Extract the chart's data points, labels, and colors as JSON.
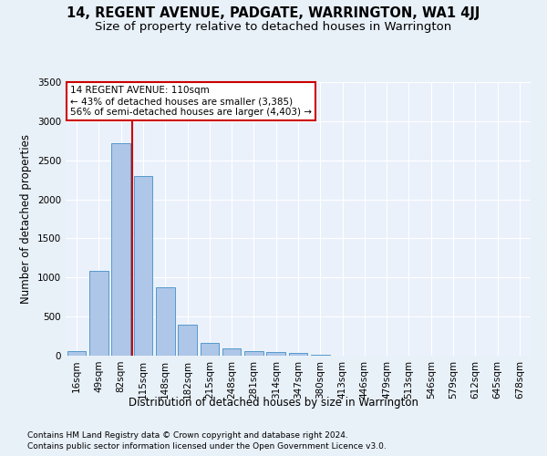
{
  "title": "14, REGENT AVENUE, PADGATE, WARRINGTON, WA1 4JJ",
  "subtitle": "Size of property relative to detached houses in Warrington",
  "xlabel": "Distribution of detached houses by size in Warrington",
  "ylabel": "Number of detached properties",
  "categories": [
    "16sqm",
    "49sqm",
    "82sqm",
    "115sqm",
    "148sqm",
    "182sqm",
    "215sqm",
    "248sqm",
    "281sqm",
    "314sqm",
    "347sqm",
    "380sqm",
    "413sqm",
    "446sqm",
    "479sqm",
    "513sqm",
    "546sqm",
    "579sqm",
    "612sqm",
    "645sqm",
    "678sqm"
  ],
  "values": [
    55,
    1090,
    2720,
    2300,
    870,
    400,
    160,
    95,
    60,
    50,
    35,
    15,
    5,
    2,
    1,
    0,
    0,
    0,
    0,
    0,
    0
  ],
  "bar_color": "#aec6e8",
  "bar_edge_color": "#5599cc",
  "vline_color": "#cc0000",
  "annotation_text": "14 REGENT AVENUE: 110sqm\n← 43% of detached houses are smaller (3,385)\n56% of semi-detached houses are larger (4,403) →",
  "annotation_box_color": "#ffffff",
  "annotation_box_edge": "#cc0000",
  "ylim": [
    0,
    3500
  ],
  "yticks": [
    0,
    500,
    1000,
    1500,
    2000,
    2500,
    3000,
    3500
  ],
  "footnote1": "Contains HM Land Registry data © Crown copyright and database right 2024.",
  "footnote2": "Contains public sector information licensed under the Open Government Licence v3.0.",
  "bg_color": "#e8f0f8",
  "plot_bg_color": "#eaf1fb",
  "grid_color": "#ffffff",
  "title_fontsize": 10.5,
  "subtitle_fontsize": 9.5,
  "axis_label_fontsize": 8.5,
  "tick_fontsize": 7.5,
  "annotation_fontsize": 7.5,
  "footnote_fontsize": 6.5
}
